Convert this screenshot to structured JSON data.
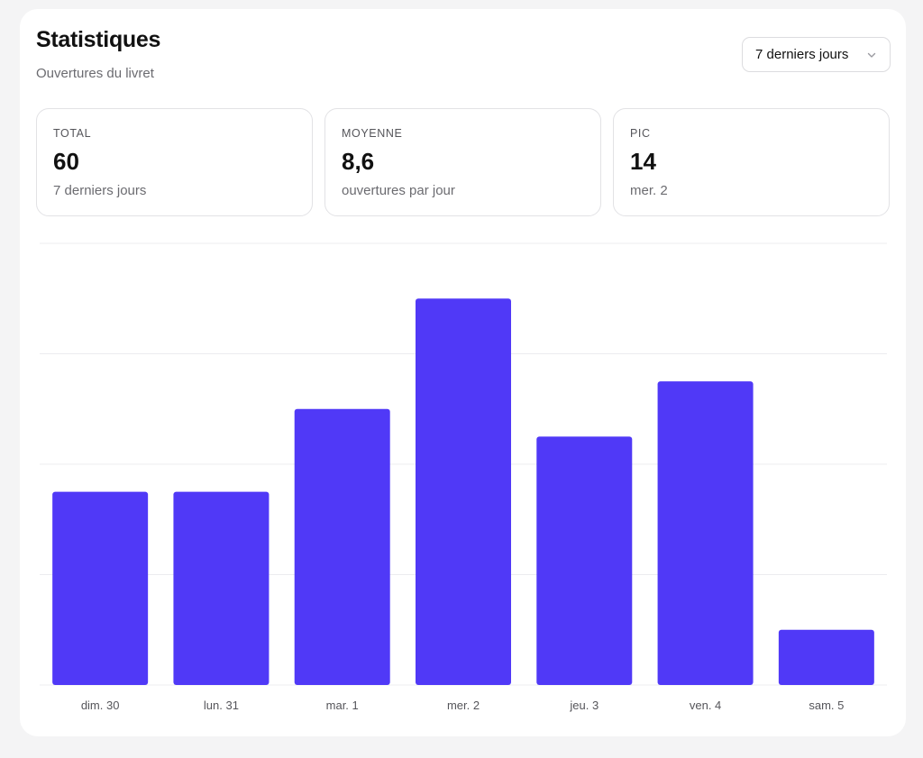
{
  "header": {
    "title": "Statistiques",
    "subtitle": "Ouvertures du livret"
  },
  "period_select": {
    "selected": "7 derniers jours",
    "icon": "chevron-down-icon"
  },
  "stats": [
    {
      "label": "TOTAL",
      "value": "60",
      "note": "7 derniers jours"
    },
    {
      "label": "MOYENNE",
      "value": "8,6",
      "note": "ouvertures par jour"
    },
    {
      "label": "PIC",
      "value": "14",
      "note": "mer. 2"
    }
  ],
  "colors": {
    "bar": "#5039f7",
    "grid": "#ececef",
    "tick_text": "#55555a"
  },
  "chart_data": {
    "type": "bar",
    "categories": [
      "dim. 30",
      "lun. 31",
      "mar. 1",
      "mer. 2",
      "jeu. 3",
      "ven. 4",
      "sam. 5"
    ],
    "values": [
      7,
      7,
      10,
      14,
      9,
      11,
      2
    ],
    "ylim": [
      0,
      16
    ],
    "grid": true,
    "gridlines": [
      0,
      4,
      8,
      12,
      16
    ]
  }
}
